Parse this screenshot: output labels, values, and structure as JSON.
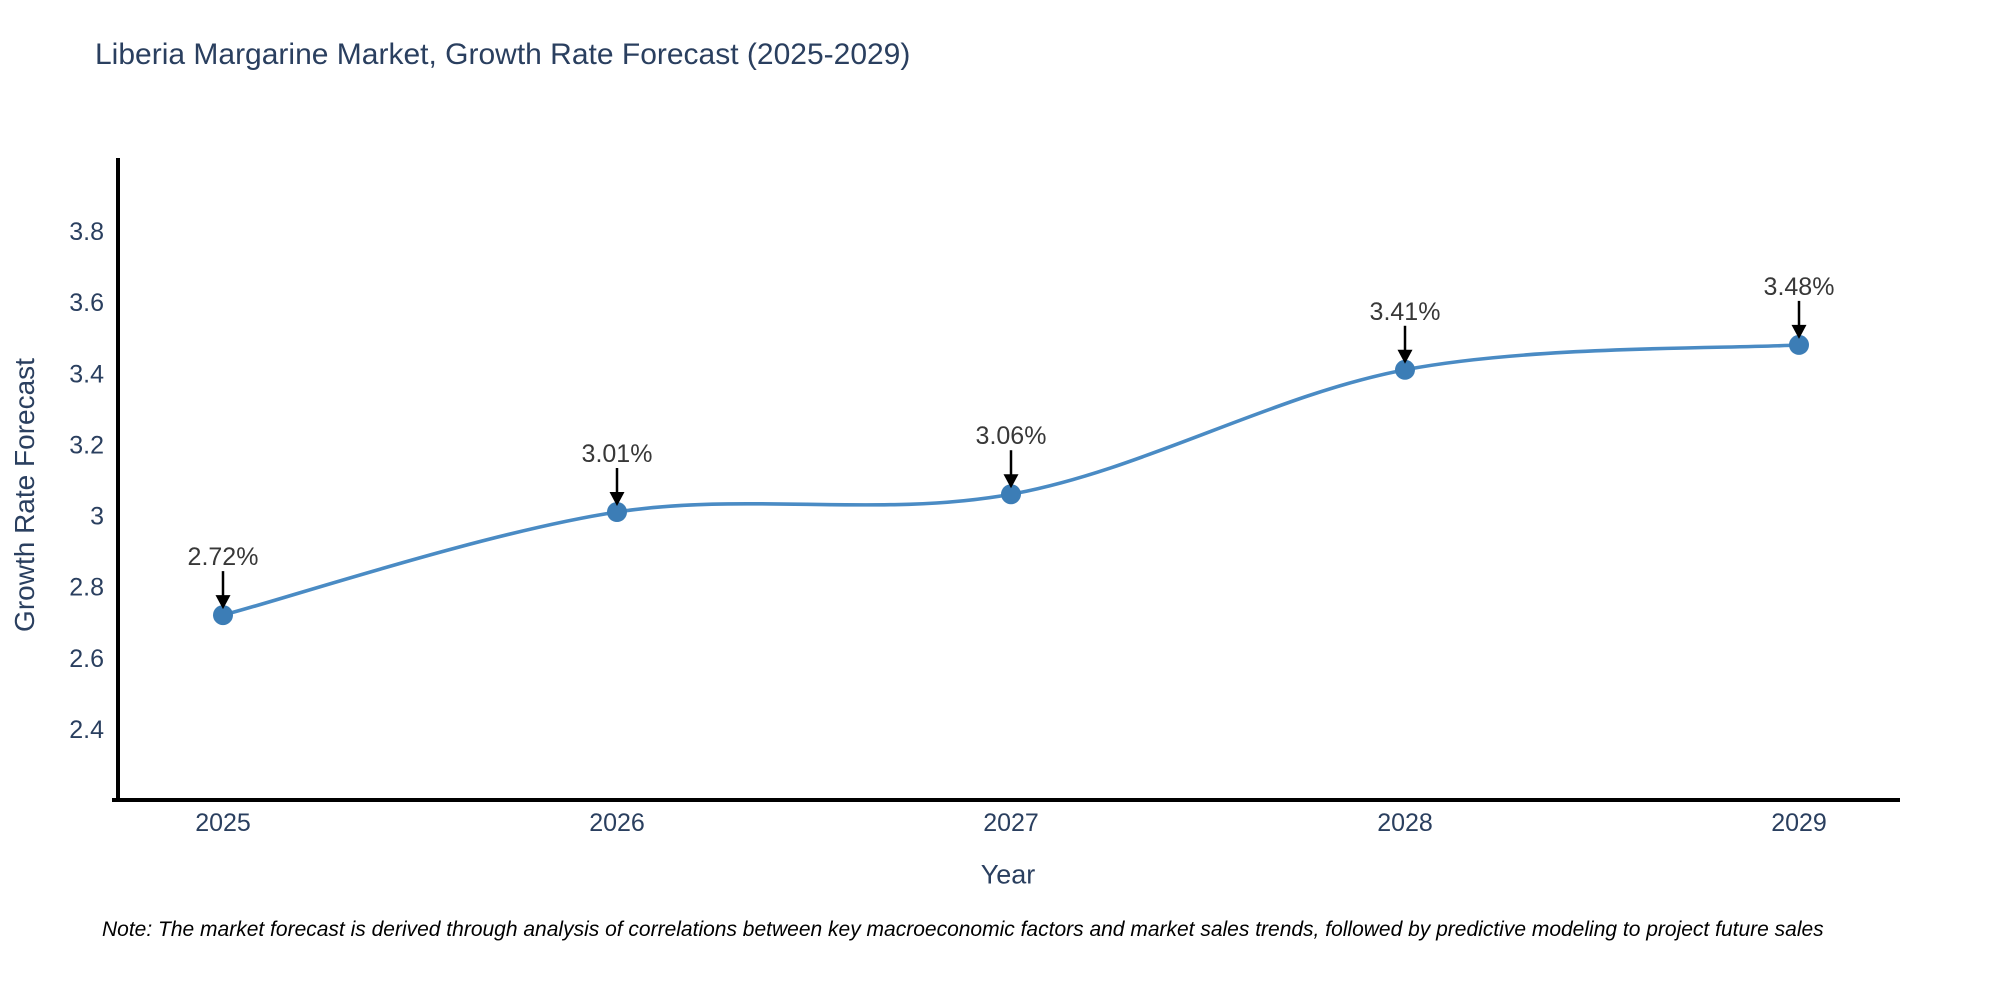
{
  "note": {
    "text": "Note: The market forecast is derived through analysis of correlations between key macroeconomic factors and market sales trends, followed by predictive modeling to project future sales"
  },
  "chart_data": {
    "type": "line",
    "title": "Liberia Margarine Market, Growth Rate Forecast (2025-2029)",
    "xlabel": "Year",
    "ylabel": "Growth Rate Forecast",
    "x": [
      2025,
      2026,
      2027,
      2028,
      2029
    ],
    "values": [
      2.72,
      3.01,
      3.06,
      3.41,
      3.48
    ],
    "point_labels": [
      "2.72%",
      "3.01%",
      "3.06%",
      "3.41%",
      "3.48%"
    ],
    "xtick_labels": [
      "2025",
      "2026",
      "2027",
      "2028",
      "2029"
    ],
    "yticks": [
      2.4,
      2.6,
      2.8,
      3,
      3.2,
      3.4,
      3.6,
      3.8
    ],
    "ytick_labels": [
      "2.4",
      "2.6",
      "2.8",
      "3",
      "3.2",
      "3.4",
      "3.6",
      "3.8"
    ],
    "ylim": [
      2.2,
      4.0
    ],
    "grid": false,
    "legend": false,
    "line_shape": "spline",
    "annotations_have_arrows": true,
    "colors": {
      "line": "#4a8bc4",
      "marker": "#3c7db6",
      "arrow": "#000000",
      "spine": "#000000",
      "tick_text": "#2a3f5f",
      "title_text": "#2a3f5f",
      "annotation_text": "#383838"
    }
  }
}
